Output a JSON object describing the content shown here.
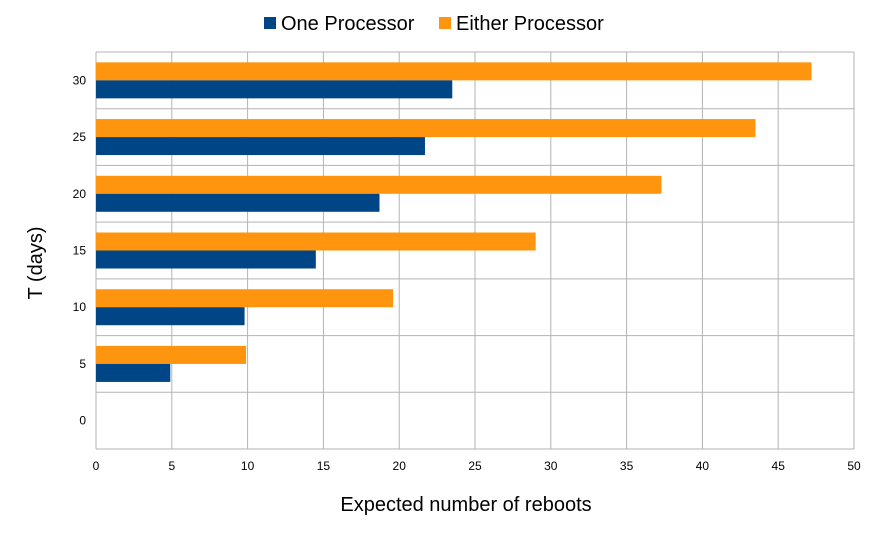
{
  "chart_data": {
    "type": "bar",
    "orientation": "horizontal",
    "categories": [
      "0",
      "5",
      "10",
      "15",
      "20",
      "25",
      "30"
    ],
    "series": [
      {
        "name": "One Processor",
        "color": "#004586",
        "values": [
          0,
          4.9,
          9.8,
          14.5,
          18.7,
          21.7,
          23.5
        ]
      },
      {
        "name": "Either Processor",
        "color": "#ff950e",
        "values": [
          0,
          9.9,
          19.6,
          29.0,
          37.3,
          43.5,
          47.2
        ]
      }
    ],
    "xlabel": "Expected number of reboots",
    "ylabel": "T (days)",
    "xlim": [
      0,
      50
    ],
    "x_ticks": [
      "0",
      "5",
      "10",
      "15",
      "20",
      "25",
      "30",
      "35",
      "40",
      "45",
      "50"
    ],
    "grid": true,
    "legend": "top-center"
  }
}
